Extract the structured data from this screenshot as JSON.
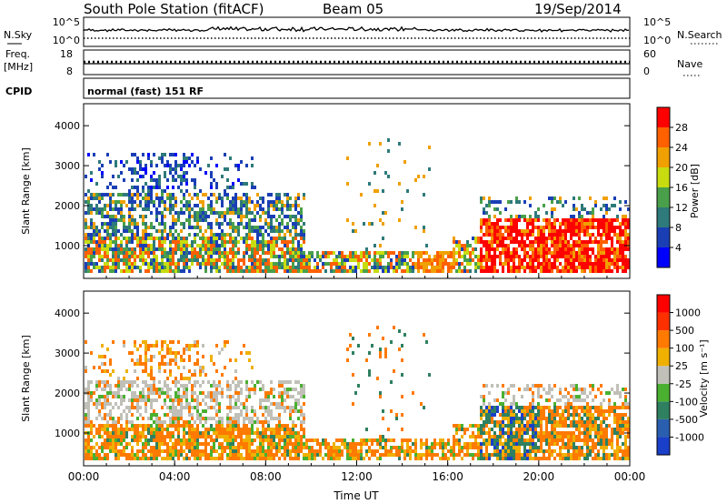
{
  "header": {
    "station": "South Pole Station (fitACF)",
    "beam": "Beam 05",
    "date": "19/Sep/2014"
  },
  "sky_panel": {
    "left_label": "N.Sky",
    "left_ticks": [
      "10^5",
      "10^0"
    ],
    "right_label": "N.Search",
    "right_ticks": [
      "10^5",
      "10^0"
    ]
  },
  "freq_panel": {
    "left_label_1": "Freq.",
    "left_label_2": "[MHz]",
    "left_ticks": [
      "18",
      "8"
    ],
    "right_label": "Nave",
    "right_ticks": [
      "60",
      "0"
    ]
  },
  "cpid": {
    "label": "CPID",
    "value": "normal (fast) 151 RF"
  },
  "chart_data": [
    {
      "type": "heatmap",
      "name": "power",
      "xlabel": "",
      "ylabel": "Slant Range [km]",
      "x_ticks": [
        "00:00",
        "04:00",
        "08:00",
        "12:00",
        "16:00",
        "20:00",
        "00:00"
      ],
      "y_ticks": [
        "1000",
        "2000",
        "3000",
        "4000"
      ],
      "ylim": [
        180,
        4550
      ],
      "xlim_hours": [
        0,
        24
      ],
      "colorbar": {
        "label": "Power [dB]",
        "ticks": [
          "4",
          "8",
          "12",
          "16",
          "20",
          "24",
          "28"
        ],
        "colors": [
          "#0000ff",
          "#1a3fb5",
          "#2f7a7a",
          "#4aa04a",
          "#c8dc10",
          "#f0a000",
          "#ff6000",
          "#ff0000"
        ]
      }
    },
    {
      "type": "heatmap",
      "name": "velocity",
      "xlabel": "Time UT",
      "ylabel": "Slant Range [km]",
      "x_ticks": [
        "00:00",
        "04:00",
        "08:00",
        "12:00",
        "16:00",
        "20:00",
        "00:00"
      ],
      "y_ticks": [
        "1000",
        "2000",
        "3000",
        "4000"
      ],
      "ylim": [
        180,
        4550
      ],
      "xlim_hours": [
        0,
        24
      ],
      "colorbar": {
        "label": "Velocity [m s⁻¹]",
        "ticks": [
          "1000",
          "500",
          "100",
          "25",
          "-25",
          "-100",
          "-500",
          "-1000"
        ],
        "colors": [
          "#1a3fc8",
          "#2a5fb0",
          "#2f8060",
          "#4ab030",
          "#c0c0b8",
          "#f0b000",
          "#ff7a00",
          "#ff3000",
          "#ff0000"
        ]
      }
    }
  ]
}
